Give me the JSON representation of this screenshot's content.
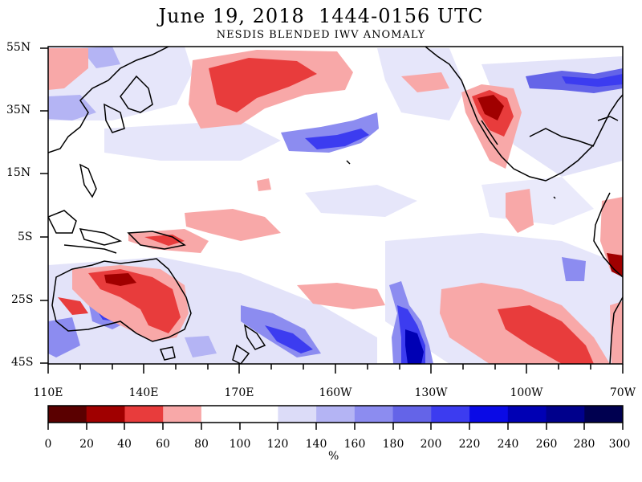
{
  "title": "June 19, 2018  1444-0156 UTC",
  "subtitle": "NESDIS BLENDED IWV ANOMALY",
  "lat_labels": [
    "55N",
    "35N",
    "15N",
    "5S",
    "25S",
    "45S"
  ],
  "lon_labels": [
    "110E",
    "140E",
    "170E",
    "160W",
    "130W",
    "100W",
    "70W"
  ],
  "colorbar": {
    "ticks": [
      "0",
      "20",
      "40",
      "60",
      "80",
      "100",
      "120",
      "140",
      "160",
      "180",
      "200",
      "220",
      "240",
      "260",
      "280",
      "300"
    ],
    "unit": "%",
    "colors": [
      "#5a0000",
      "#a00000",
      "#e83c3c",
      "#f8a8a8",
      "#ffffff",
      "#ffffff",
      "#dcdcf8",
      "#b4b4f4",
      "#8c8cf0",
      "#6464e8",
      "#3c3cf0",
      "#0a0ae6",
      "#0000b4",
      "#00008c",
      "#000050"
    ]
  }
}
